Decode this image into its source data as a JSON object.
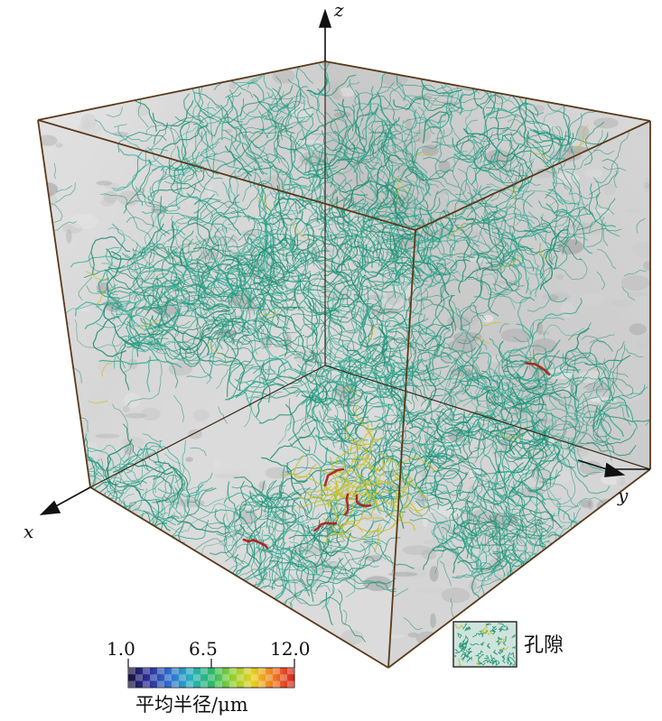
{
  "axes": {
    "x_label": "x",
    "y_label": "y",
    "z_label": "z"
  },
  "colorbar": {
    "ticks": [
      "1.0",
      "6.5",
      "12.0"
    ],
    "min": 1.0,
    "mid": 6.5,
    "max": 12.0,
    "title": "平均半径/μm",
    "colors": [
      "#1a1040",
      "#2b2f9a",
      "#2f6fd0",
      "#28b0c0",
      "#29b86a",
      "#8fd030",
      "#e8d020",
      "#f07820",
      "#d82020"
    ]
  },
  "legend": {
    "label": "孔隙",
    "swatch_color": "#2a9a7a"
  },
  "colors": {
    "pore_network": "#1f8f72",
    "pore_highlight": "#c8c020",
    "pore_large": "#b01818",
    "rock_surface": "#d8d8d8",
    "box_edge": "#5a3a1a"
  }
}
